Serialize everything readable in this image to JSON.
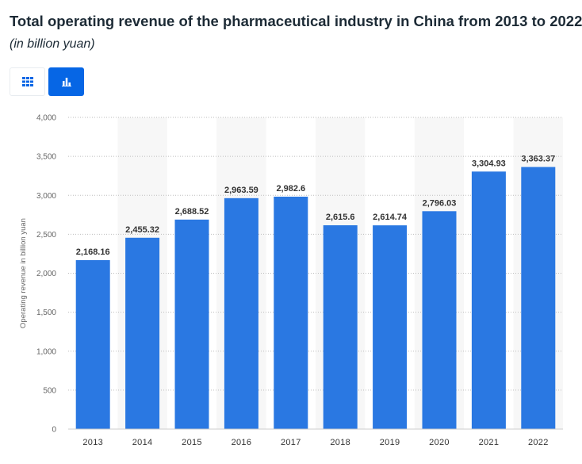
{
  "header": {
    "title": "Total operating revenue of the pharmaceutical industry in China from 2013 to 2022",
    "subtitle": "(in billion yuan)"
  },
  "view_toggle": {
    "table_icon": "grid-table-icon",
    "chart_icon": "bar-chart-icon",
    "active": "chart",
    "active_color": "#0666e5"
  },
  "chart_data": {
    "type": "bar",
    "title": "Total operating revenue of the pharmaceutical industry in China from 2013 to 2022",
    "subtitle": "(in billion yuan)",
    "xlabel": "",
    "ylabel": "Operating revenue in billion yuan",
    "categories": [
      "2013",
      "2014",
      "2015",
      "2016",
      "2017",
      "2018",
      "2019",
      "2020",
      "2021",
      "2022"
    ],
    "values": [
      2168.16,
      2455.32,
      2688.52,
      2963.59,
      2982.6,
      2615.6,
      2614.74,
      2796.03,
      3304.93,
      3363.37
    ],
    "value_labels": [
      "2,168.16",
      "2,455.32",
      "2,688.52",
      "2,963.59",
      "2,982.6",
      "2,615.6",
      "2,614.74",
      "2,796.03",
      "3,304.93",
      "3,363.37"
    ],
    "ylim": [
      0,
      4000
    ],
    "yticks": [
      0,
      500,
      1000,
      1500,
      2000,
      2500,
      3000,
      3500,
      4000
    ],
    "ytick_labels": [
      "0",
      "500",
      "1,000",
      "1,500",
      "2,000",
      "2,500",
      "3,000",
      "3,500",
      "4,000"
    ],
    "grid": true,
    "bar_color": "#2a78e2"
  }
}
